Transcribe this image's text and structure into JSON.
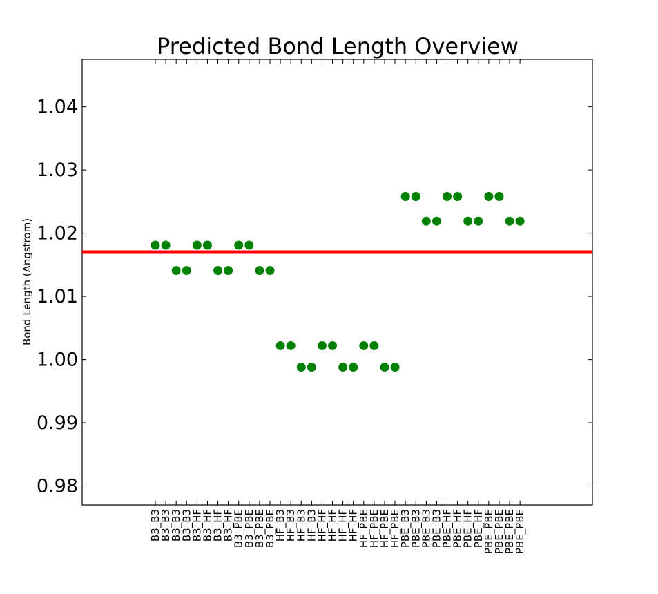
{
  "chart_data": {
    "type": "scatter",
    "title": "Predicted Bond Length Overview",
    "xlabel": "",
    "ylabel": "Bond Length (Angstrom)",
    "ylim": [
      0.977,
      1.0475
    ],
    "yticks": [
      "0.98",
      "0.99",
      "1.00",
      "1.01",
      "1.02",
      "1.03",
      "1.04"
    ],
    "categories": [
      "B3_B3",
      "B3_B3",
      "B3_B3",
      "B3_B3",
      "B3_HF",
      "B3_HF",
      "B3_HF",
      "B3_HF",
      "B3_PBE",
      "B3_PBE",
      "B3_PBE",
      "B3_PBE",
      "HF_B3",
      "HF_B3",
      "HF_B3",
      "HF_B3",
      "HF_HF",
      "HF_HF",
      "HF_HF",
      "HF_HF",
      "HF_PBE",
      "HF_PBE",
      "HF_PBE",
      "HF_PBE",
      "PBE_B3",
      "PBE_B3",
      "PBE_B3",
      "PBE_B3",
      "PBE_HF",
      "PBE_HF",
      "PBE_HF",
      "PBE_HF",
      "PBE_PBE",
      "PBE_PBE",
      "PBE_PBE",
      "PBE_PBE"
    ],
    "series": [
      {
        "color": "#008000",
        "marker": "circle",
        "values": [
          1.0181,
          1.0181,
          1.0141,
          1.0141,
          1.0181,
          1.0181,
          1.0141,
          1.0141,
          1.0181,
          1.0181,
          1.0141,
          1.0141,
          1.0022,
          1.0022,
          0.9988,
          0.9988,
          1.0022,
          1.0022,
          0.9988,
          0.9988,
          1.0022,
          1.0022,
          0.9988,
          0.9988,
          1.0258,
          1.0258,
          1.0219,
          1.0219,
          1.0258,
          1.0258,
          1.0219,
          1.0219,
          1.0258,
          1.0258,
          1.0219,
          1.0219
        ]
      }
    ],
    "reference_line": {
      "value": 1.017,
      "color": "#ff0000"
    },
    "grid": false,
    "legend": "none"
  }
}
